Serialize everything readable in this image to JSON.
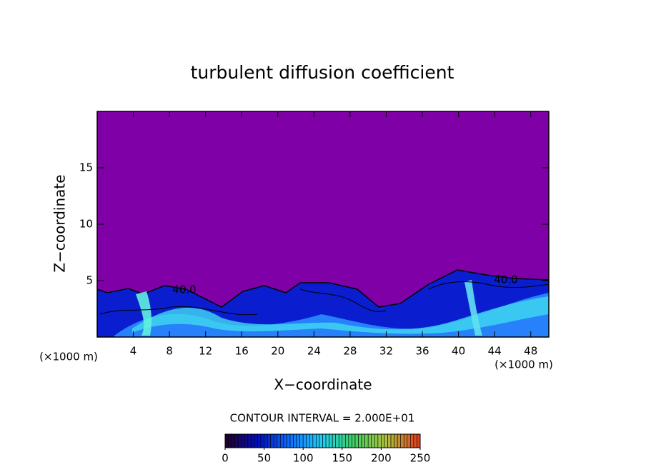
{
  "chart_data": {
    "type": "contour",
    "title": "turbulent diffusion coefficient",
    "x_label": "X−coordinate",
    "y_label": "Z−coordinate",
    "y_unit_label": "(×1000 m)",
    "x_unit_label": "(×1000 m)",
    "xlim": [
      0,
      50
    ],
    "xticks": [
      4,
      8,
      12,
      16,
      20,
      24,
      28,
      32,
      36,
      40,
      44,
      48
    ],
    "ylim": [
      0,
      20
    ],
    "yticks": [
      5,
      10,
      15
    ],
    "contour_labels": [
      {
        "value": 40,
        "label": "40.0"
      },
      {
        "value": 40,
        "label": "40.0"
      }
    ],
    "contour_interval_label": "CONTOUR INTERVAL = 2.000E+01",
    "colorbar_lim": [
      0,
      250
    ],
    "colorbar_ticks": [
      0,
      50,
      100,
      150,
      200,
      250
    ],
    "background_color": "#7e00a6",
    "colormap": [
      "#200030",
      "#0010c0",
      "#1070ff",
      "#20d0f0",
      "#40d060",
      "#b0c040",
      "#e04020"
    ]
  }
}
